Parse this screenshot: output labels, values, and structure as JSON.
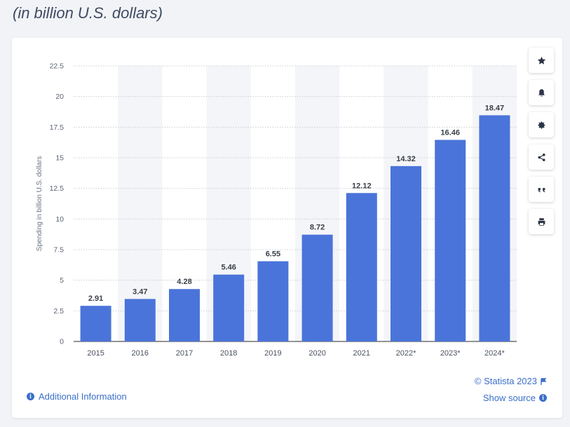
{
  "header": {
    "subtitle": "(in billion U.S. dollars)"
  },
  "toolbar": [
    {
      "name": "favorite-star-icon"
    },
    {
      "name": "notification-bell-icon"
    },
    {
      "name": "settings-gear-icon"
    },
    {
      "name": "share-icon"
    },
    {
      "name": "cite-quote-icon"
    },
    {
      "name": "print-icon"
    }
  ],
  "footer": {
    "copyright": "© Statista 2023",
    "show_source": "Show source",
    "additional_info": "Additional Information"
  },
  "colors": {
    "bar": "#4a74d9",
    "accent": "#3b6fc9",
    "band": "#f4f5f8"
  },
  "chart_data": {
    "type": "bar",
    "categories": [
      "2015",
      "2016",
      "2017",
      "2018",
      "2019",
      "2020",
      "2021",
      "2022*",
      "2023*",
      "2024*"
    ],
    "values": [
      2.91,
      3.47,
      4.28,
      5.46,
      6.55,
      8.72,
      12.12,
      14.32,
      16.46,
      18.47
    ],
    "value_labels": [
      "2.91",
      "3.47",
      "4.28",
      "5.46",
      "6.55",
      "8.72",
      "12.12",
      "14.32",
      "16.46",
      "18.47"
    ],
    "ylabel": "Spending in billion U.S. dollars",
    "ylim": [
      0,
      22.5
    ],
    "yticks": [
      "0",
      "2.5",
      "5",
      "7.5",
      "10",
      "12.5",
      "15",
      "17.5",
      "20",
      "22.5"
    ],
    "grid": true
  }
}
